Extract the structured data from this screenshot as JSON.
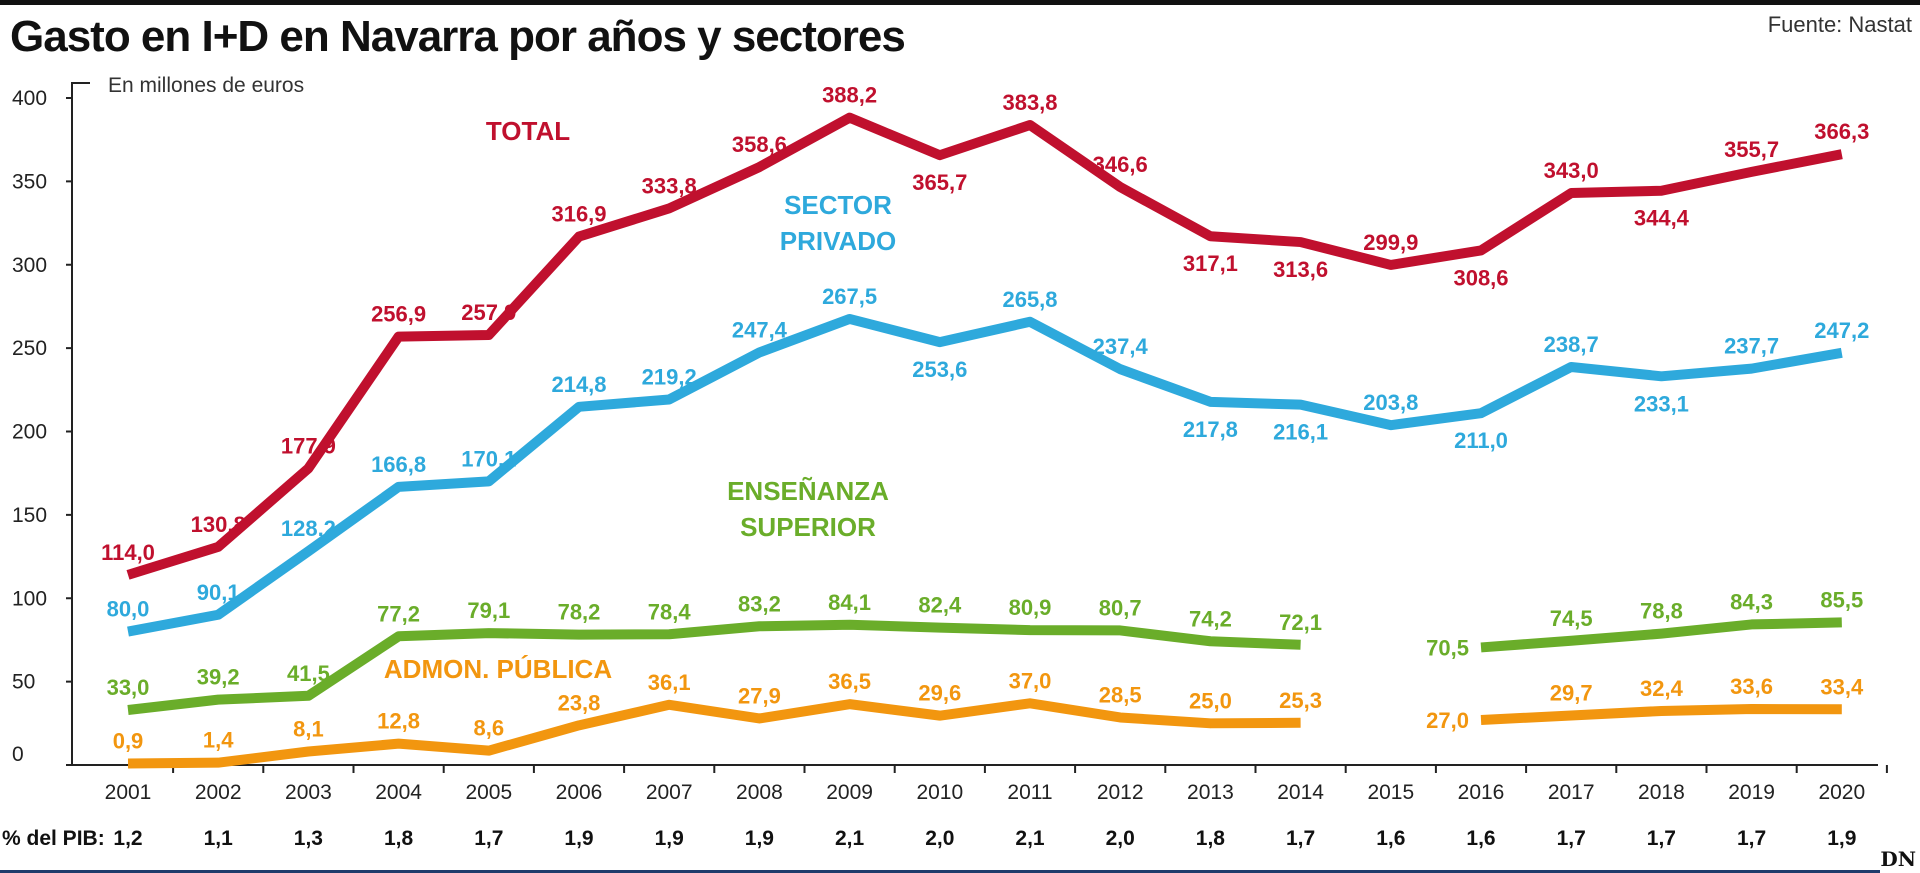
{
  "header": {
    "title": "Gasto en I+D en Navarra por años y sectores",
    "source": "Fuente: Nastat",
    "logo": "DN"
  },
  "chart_data": {
    "type": "line",
    "title": "Gasto en I+D en Navarra por años y sectores",
    "ylabel": "En millones de euros",
    "xlabel": "",
    "ylim": [
      0,
      400
    ],
    "yticks": [
      0,
      50,
      100,
      150,
      200,
      250,
      300,
      350,
      400
    ],
    "grid": false,
    "categories": [
      "2001",
      "2002",
      "2003",
      "2004",
      "2005",
      "2006",
      "2007",
      "2008",
      "2009",
      "2010",
      "2011",
      "2012",
      "2013",
      "2014",
      "2015",
      "2016",
      "2017",
      "2018",
      "2019",
      "2020"
    ],
    "series": [
      {
        "name": "TOTAL",
        "color": "#c0102e",
        "values": [
          114.0,
          130.8,
          177.9,
          256.9,
          257.9,
          316.9,
          333.8,
          358.6,
          388.2,
          365.7,
          383.8,
          346.6,
          317.1,
          313.6,
          299.9,
          308.6,
          343.0,
          344.4,
          355.7,
          366.3
        ],
        "labels": [
          "114,0",
          "130,8",
          "177,9",
          "256,9",
          "257,9",
          "316,9",
          "333,8",
          "358,6",
          "388,2",
          "365,7",
          "383,8",
          "346,6",
          "317,1",
          "313,6",
          "299,9",
          "308,6",
          "343,0",
          "344,4",
          "355,7",
          "366,3"
        ],
        "label_pos": [
          "above",
          "above",
          "above",
          "above",
          "above",
          "above",
          "above",
          "above",
          "above",
          "below",
          "above",
          "above",
          "below",
          "below",
          "above",
          "below",
          "above",
          "below",
          "above",
          "above"
        ],
        "name_lines": [
          "TOTAL"
        ]
      },
      {
        "name": "SECTOR PRIVADO",
        "color": "#2ea9dc",
        "values": [
          80.0,
          90.1,
          128.2,
          166.8,
          170.1,
          214.8,
          219.2,
          247.4,
          267.5,
          253.6,
          265.8,
          237.4,
          217.8,
          216.1,
          203.8,
          211.0,
          238.7,
          233.1,
          237.7,
          247.2
        ],
        "labels": [
          "80,0",
          "90,1",
          "128,2",
          "166,8",
          "170,1",
          "214,8",
          "219,2",
          "247,4",
          "267,5",
          "253,6",
          "265,8",
          "237,4",
          "217,8",
          "216,1",
          "203,8",
          "211,0",
          "238,7",
          "233,1",
          "237,7",
          "247,2"
        ],
        "label_pos": [
          "above",
          "above",
          "above",
          "above",
          "above",
          "above",
          "above",
          "above",
          "above",
          "below",
          "above",
          "above",
          "below",
          "below",
          "above",
          "below",
          "above",
          "below",
          "above",
          "above"
        ],
        "name_lines": [
          "SECTOR",
          "PRIVADO"
        ]
      },
      {
        "name": "ENSEÑANZA SUPERIOR",
        "color": "#6aad2a",
        "values": [
          33.0,
          39.2,
          41.5,
          77.2,
          79.1,
          78.2,
          78.4,
          83.2,
          84.1,
          82.4,
          80.9,
          80.7,
          74.2,
          72.1,
          null,
          70.5,
          74.5,
          78.8,
          84.3,
          85.5
        ],
        "labels": [
          "33,0",
          "39,2",
          "41,5",
          "77,2",
          "79,1",
          "78,2",
          "78,4",
          "83,2",
          "84,1",
          "82,4",
          "80,9",
          "80,7",
          "74,2",
          "72,1",
          "",
          "70,5",
          "74,5",
          "78,8",
          "84,3",
          "85,5"
        ],
        "label_pos": [
          "above",
          "above",
          "above",
          "above",
          "above",
          "above",
          "above",
          "above",
          "above",
          "above",
          "above",
          "above",
          "above",
          "above",
          "above",
          "left",
          "above",
          "above",
          "above",
          "above"
        ],
        "name_lines": [
          "ENSEÑANZA",
          "SUPERIOR"
        ]
      },
      {
        "name": "ADMON. PÚBLICA",
        "color": "#f2960f",
        "values": [
          0.9,
          1.4,
          8.1,
          12.8,
          8.6,
          23.8,
          36.1,
          27.9,
          36.5,
          29.6,
          37.0,
          28.5,
          25.0,
          25.3,
          null,
          27.0,
          29.7,
          32.4,
          33.6,
          33.4
        ],
        "labels": [
          "0,9",
          "1,4",
          "8,1",
          "12,8",
          "8,6",
          "23,8",
          "36,1",
          "27,9",
          "36,5",
          "29,6",
          "37,0",
          "28,5",
          "25,0",
          "25,3",
          "",
          "27,0",
          "29,7",
          "32,4",
          "33,6",
          "33,4"
        ],
        "label_pos": [
          "above",
          "above",
          "above",
          "above",
          "above",
          "above",
          "above",
          "above",
          "above",
          "above",
          "above",
          "above",
          "above",
          "above",
          "above",
          "left",
          "above",
          "above",
          "above",
          "above"
        ],
        "name_lines": [
          "ADMON. PÚBLICA"
        ]
      }
    ],
    "pib_label": "% del PIB:",
    "pib_values": [
      "1,2",
      "1,1",
      "1,3",
      "1,8",
      "1,7",
      "1,9",
      "1,9",
      "1,9",
      "2,1",
      "2,0",
      "2,1",
      "2,0",
      "1,8",
      "1,7",
      "1,6",
      "1,6",
      "1,7",
      "1,7",
      "1,7",
      "1,9"
    ]
  }
}
